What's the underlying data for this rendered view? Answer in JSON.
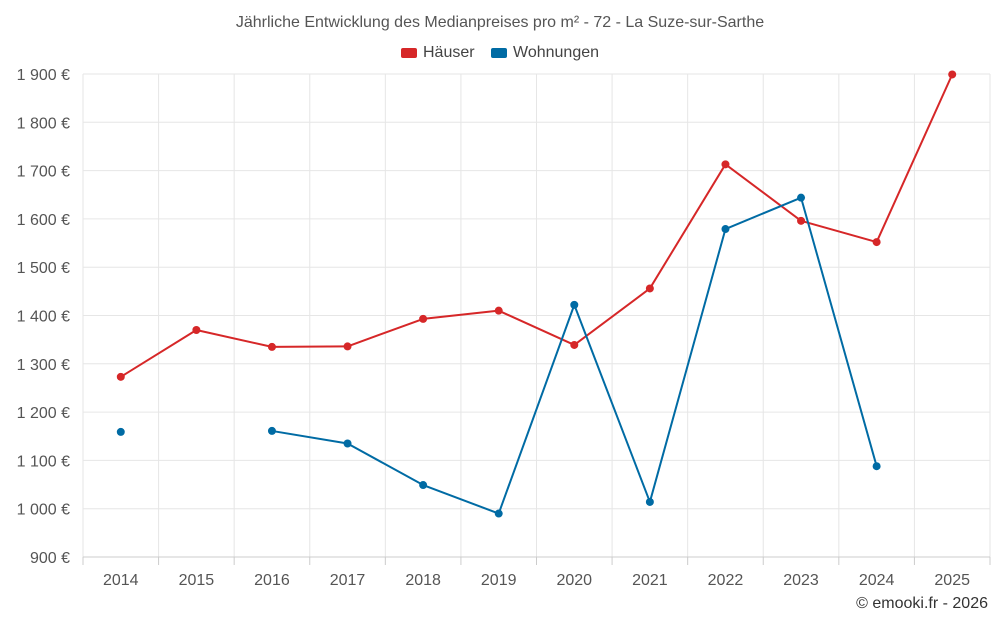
{
  "chart_data": {
    "type": "line",
    "title": "Jährliche Entwicklung des Medianpreises pro m² - 72 - La Suze-sur-Sarthe",
    "categories": [
      "2014",
      "2015",
      "2016",
      "2017",
      "2018",
      "2019",
      "2020",
      "2021",
      "2022",
      "2023",
      "2024",
      "2025"
    ],
    "ylim": [
      900,
      1900
    ],
    "yticks": [
      900,
      1000,
      1100,
      1200,
      1300,
      1400,
      1500,
      1600,
      1700,
      1800,
      1900
    ],
    "ytick_labels": [
      "900 €",
      "1 000 €",
      "1 100 €",
      "1 200 €",
      "1 300 €",
      "1 400 €",
      "1 500 €",
      "1 600 €",
      "1 700 €",
      "1 800 €",
      "1 900 €"
    ],
    "series": [
      {
        "name": "Häuser",
        "color": "#d62728",
        "values": [
          1273,
          1370,
          1335,
          1336,
          1393,
          1410,
          1339,
          1456,
          1713,
          1596,
          1552,
          1899
        ]
      },
      {
        "name": "Wohnungen",
        "color": "#006ba4",
        "values": [
          1159,
          null,
          1161,
          1135,
          1049,
          990,
          1422,
          1014,
          1579,
          1644,
          1088,
          null
        ]
      }
    ],
    "legend": "top-center",
    "grid": true
  },
  "credit": "© emooki.fr - 2026"
}
